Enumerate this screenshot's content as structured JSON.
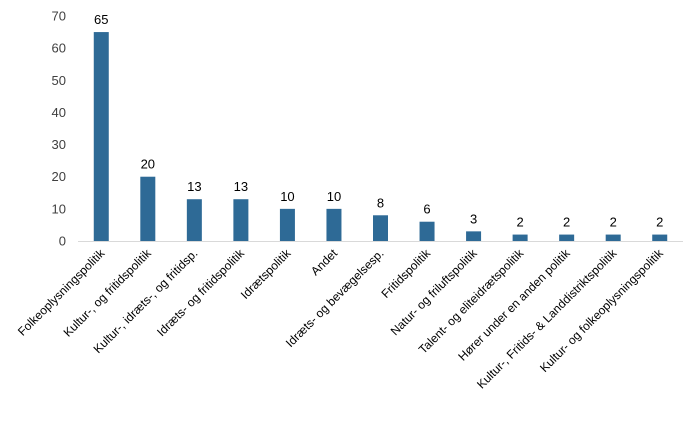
{
  "chart_data": {
    "type": "bar",
    "categories": [
      "Folkeoplysningspolitik",
      "Kultur-, og fritidspolitik",
      "Kultur-, idræts-, og fritidsp.",
      "Idræts- og fritidspolitik",
      "Idrætspolitik",
      "Andet",
      "Idræts- og bevægelsesp.",
      "Fritidspolitik",
      "Natur- og friluftspolitik",
      "Talent- og eliteidrætspolitik",
      "Hører under en anden politik",
      "Kultur-, Fritids- & Landdistriktspolitik",
      "Kultur- og folkeoplysningspolitik"
    ],
    "values": [
      65,
      20,
      13,
      13,
      10,
      10,
      8,
      6,
      3,
      2,
      2,
      2,
      2
    ],
    "ylim": [
      0,
      70
    ],
    "yticks": [
      0,
      10,
      20,
      30,
      40,
      50,
      60,
      70
    ],
    "grid": false,
    "data_labels": true,
    "bar_color": "#2e6a96",
    "axis_color": "#d9d9d9"
  }
}
